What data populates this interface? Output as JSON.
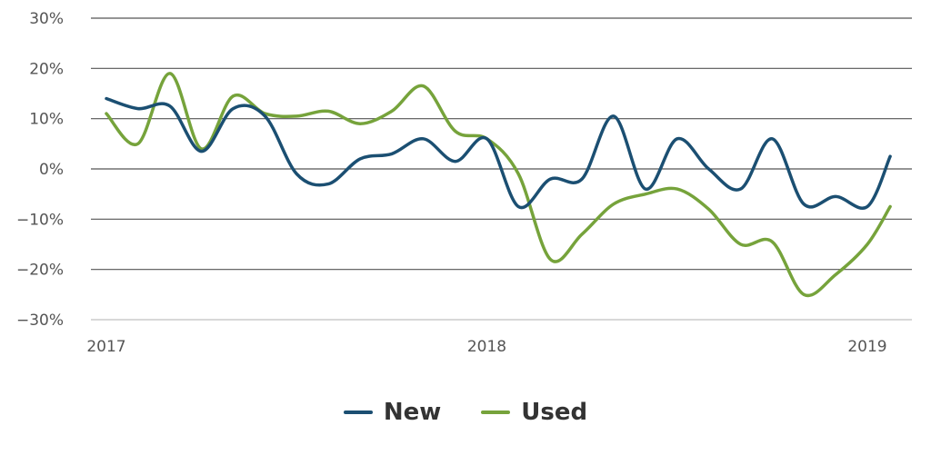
{
  "chart_data": {
    "type": "line",
    "ylim": [
      -30,
      30
    ],
    "yticks": [
      30,
      20,
      10,
      0,
      -10,
      -20,
      -30
    ],
    "ytick_labels": [
      "30%",
      "20%",
      "10%",
      "0%",
      "−10%",
      "−20%",
      "−30%"
    ],
    "xlim": [
      2017,
      2019.06
    ],
    "xticks": [
      2017,
      2018,
      2019
    ],
    "xtick_labels": [
      "2017",
      "2018",
      "2019"
    ],
    "grid": true,
    "legend_position": "bottom-center",
    "series": [
      {
        "name": "New",
        "color": "#1b4f72",
        "x": [
          2017.0,
          2017.083,
          2017.167,
          2017.25,
          2017.333,
          2017.417,
          2017.5,
          2017.583,
          2017.667,
          2017.75,
          2017.833,
          2017.917,
          2018.0,
          2018.083,
          2018.167,
          2018.25,
          2018.333,
          2018.417,
          2018.5,
          2018.583,
          2018.667,
          2018.75,
          2018.833,
          2018.917,
          2019.0,
          2019.06
        ],
        "values": [
          14,
          12,
          12.5,
          3.5,
          12,
          10.5,
          -1,
          -3,
          2,
          3,
          6,
          1.5,
          6,
          -7.5,
          -2,
          -2,
          10.5,
          -4,
          6,
          0,
          -4,
          6,
          -7,
          -5.5,
          -7.5,
          2.5
        ]
      },
      {
        "name": "Used",
        "color": "#76a33b",
        "x": [
          2017.0,
          2017.083,
          2017.167,
          2017.25,
          2017.333,
          2017.417,
          2017.5,
          2017.583,
          2017.667,
          2017.75,
          2017.833,
          2017.917,
          2018.0,
          2018.083,
          2018.167,
          2018.25,
          2018.333,
          2018.417,
          2018.5,
          2018.583,
          2018.667,
          2018.75,
          2018.833,
          2018.917,
          2019.0,
          2019.06
        ],
        "values": [
          11,
          5,
          19,
          4,
          14.5,
          11,
          10.5,
          11.5,
          9,
          11.5,
          16.5,
          7.5,
          6,
          -1,
          -18,
          -13,
          -7,
          -5,
          -4,
          -8,
          -15,
          -14.5,
          -25,
          -21,
          -15,
          -7.5
        ]
      }
    ]
  }
}
